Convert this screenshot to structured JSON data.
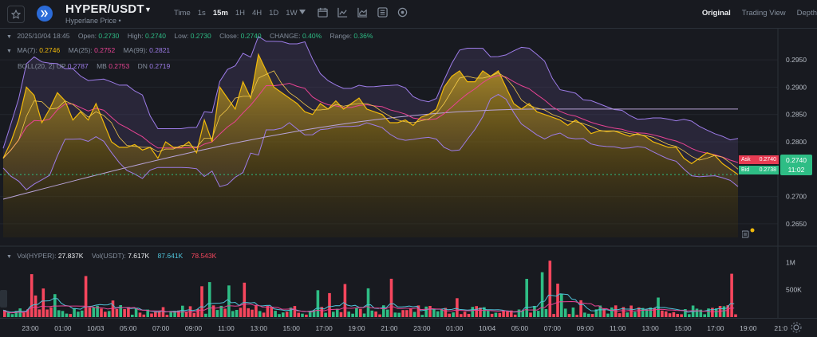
{
  "header": {
    "pair": "HYPER/USDT",
    "subtitle": "Hyperlane Price",
    "subtitle_mark": "•",
    "timeframes": [
      "Time",
      "1s",
      "15m",
      "1H",
      "4H",
      "1D",
      "1W"
    ],
    "active_timeframe": "15m",
    "views": [
      "Original",
      "Trading View",
      "Depth"
    ],
    "active_view": "Original"
  },
  "ohlc": {
    "date": "2025/10/04 18:45",
    "open_label": "Open:",
    "open": "0.2730",
    "high_label": "High:",
    "high": "0.2740",
    "low_label": "Low:",
    "low": "0.2730",
    "close_label": "Close:",
    "close": "0.2740",
    "change_label": "CHANGE:",
    "change": "0.40%",
    "range_label": "Range:",
    "range": "0.36%"
  },
  "ma": {
    "ma7_label": "MA(7):",
    "ma7": "0.2746",
    "ma25_label": "MA(25):",
    "ma25": "0.2752",
    "ma99_label": "MA(99):",
    "ma99": "0.2821"
  },
  "boll": {
    "label": "BOLL(20, 2)",
    "up_label": "UP",
    "up": "0.2787",
    "mb_label": "MB",
    "mb": "0.2753",
    "dn_label": "DN",
    "dn": "0.2719"
  },
  "volume": {
    "hyper_label": "Vol(HYPER):",
    "hyper": "27.837K",
    "usdt_label": "Vol(USDT):",
    "usdt": "7.617K",
    "ma_a": "87.641K",
    "ma_b": "78.543K",
    "axis": [
      "1M",
      "500K"
    ]
  },
  "price_axis": [
    "0.2950",
    "0.2900",
    "0.2850",
    "0.2800",
    "0.2700",
    "0.2650"
  ],
  "time_axis": [
    "23:00",
    "01:00",
    "10/03",
    "05:00",
    "07:00",
    "09:00",
    "11:00",
    "13:00",
    "15:00",
    "17:00",
    "19:00",
    "21:00",
    "23:00",
    "01:00",
    "10/04",
    "05:00",
    "07:00",
    "09:00",
    "11:00",
    "13:00",
    "15:00",
    "17:00",
    "19:00",
    "21:0"
  ],
  "ask": {
    "label": "Ask",
    "value": "0.2740"
  },
  "bid": {
    "label": "Bid",
    "value": "0.2738"
  },
  "last_price": {
    "value": "0.2740",
    "countdown": "11:02"
  },
  "colors": {
    "up": "#2ebd85",
    "down": "#f6465d",
    "ma7": "#f0b90b",
    "ma25": "#e84393",
    "ma99": "#9d7ce8",
    "volume_ma": "#4fc3d9"
  },
  "chart_data": {
    "type": "area",
    "price_series": [
      0.277,
      0.28,
      0.284,
      0.29,
      0.2885,
      0.2835,
      0.286,
      0.289,
      0.2875,
      0.284,
      0.2855,
      0.284,
      0.287,
      0.2835,
      0.28,
      0.279,
      0.279,
      0.2795,
      0.2785,
      0.279,
      0.277,
      0.28,
      0.279,
      0.279,
      0.28,
      0.278,
      0.284,
      0.28,
      0.29,
      0.288,
      0.286,
      0.291,
      0.288,
      0.296,
      0.293,
      0.29,
      0.289,
      0.288,
      0.287,
      0.2855,
      0.285,
      0.287,
      0.286,
      0.2875,
      0.286,
      0.287,
      0.288,
      0.286,
      0.2855,
      0.285,
      0.2835,
      0.2835,
      0.284,
      0.283,
      0.2845,
      0.285,
      0.286,
      0.29,
      0.292,
      0.293,
      0.291,
      0.291,
      0.293,
      0.292,
      0.293,
      0.29,
      0.287,
      0.286,
      0.287,
      0.2855,
      0.285,
      0.2845,
      0.284,
      0.283,
      0.284,
      0.283,
      0.2815,
      0.282,
      0.282,
      0.282,
      0.2815,
      0.281,
      0.2815,
      0.281,
      0.28,
      0.2795,
      0.279,
      0.279,
      0.277,
      0.276,
      0.277,
      0.278,
      0.2775,
      0.276,
      0.275,
      0.274
    ]
  }
}
